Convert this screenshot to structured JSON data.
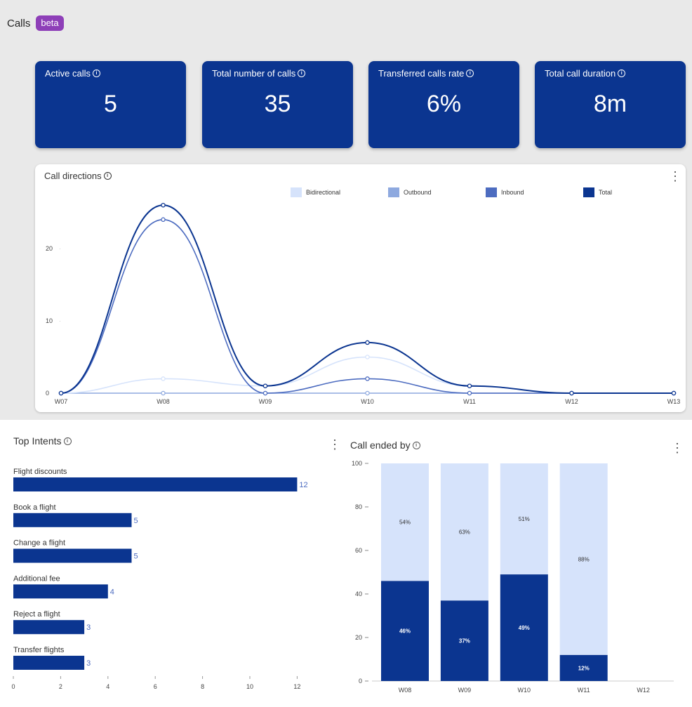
{
  "header": {
    "title": "Calls",
    "badge": "beta"
  },
  "kpis": [
    {
      "label": "Active calls",
      "value": "5"
    },
    {
      "label": "Total number of calls",
      "value": "35"
    },
    {
      "label": "Transferred calls rate",
      "value": "6%"
    },
    {
      "label": "Total call duration",
      "value": "8m"
    }
  ],
  "colors": {
    "primary": "#0b3590",
    "badge": "#8e3fb8",
    "bidirectional": "#d6e3fb",
    "outbound": "#8ea9df",
    "inbound": "#4d6cc0",
    "total": "#0b3590"
  },
  "call_directions": {
    "title": "Call directions",
    "legend": [
      "Bidirectional",
      "Outbound",
      "Inbound",
      "Total"
    ]
  },
  "top_intents": {
    "title": "Top Intents"
  },
  "call_ended_by": {
    "title": "Call ended by"
  },
  "chart_data": [
    {
      "type": "line",
      "title": "Call directions",
      "x": [
        "W07",
        "W08",
        "W09",
        "W10",
        "W11",
        "W12",
        "W13"
      ],
      "ylim": [
        0,
        27
      ],
      "yticks": [
        0,
        10,
        20
      ],
      "series": [
        {
          "name": "Bidirectional",
          "values": [
            0,
            2,
            1,
            5,
            1,
            0,
            0
          ]
        },
        {
          "name": "Outbound",
          "values": [
            0,
            0,
            0,
            0,
            0,
            0,
            0
          ]
        },
        {
          "name": "Inbound",
          "values": [
            0,
            24,
            0,
            2,
            0,
            0,
            0
          ]
        },
        {
          "name": "Total",
          "values": [
            0,
            26,
            1,
            7,
            1,
            0,
            0
          ]
        }
      ],
      "legend_position": "top"
    },
    {
      "type": "bar",
      "orientation": "horizontal",
      "title": "Top Intents",
      "categories": [
        "Flight discounts",
        "Book a flight",
        "Change a flight",
        "Additional fee",
        "Reject a flight",
        "Transfer flights"
      ],
      "values": [
        12,
        5,
        5,
        4,
        3,
        3
      ],
      "xticks": [
        0,
        2,
        4,
        6,
        8,
        10,
        12
      ],
      "xlim": [
        0,
        12
      ]
    },
    {
      "type": "bar",
      "stacked": true,
      "title": "Call ended by",
      "categories": [
        "W08",
        "W09",
        "W10",
        "W11",
        "W12"
      ],
      "ylim": [
        0,
        100
      ],
      "yticks": [
        0,
        20,
        40,
        60,
        80,
        100
      ],
      "series": [
        {
          "values": [
            46,
            37,
            49,
            12,
            null
          ],
          "labels": [
            "46%",
            "37%",
            "49%",
            "12%",
            ""
          ]
        },
        {
          "values": [
            54,
            63,
            51,
            88,
            null
          ],
          "labels": [
            "54%",
            "63%",
            "51%",
            "88%",
            ""
          ]
        }
      ]
    }
  ]
}
